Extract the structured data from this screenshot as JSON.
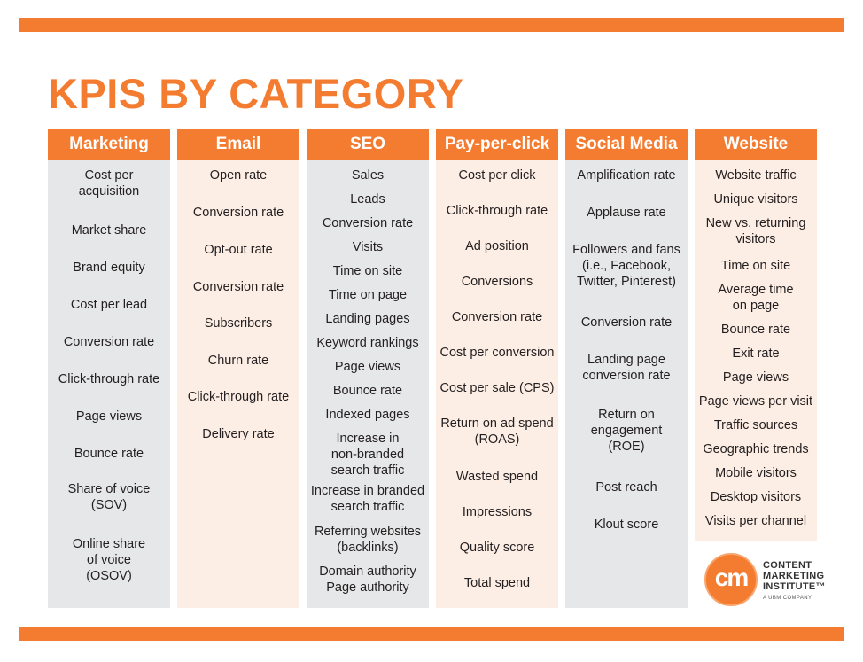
{
  "title": "KPIS BY CATEGORY",
  "colors": {
    "accent": "#f47c30",
    "panel_gray": "#e6e7e8",
    "panel_light": "#fdeee5"
  },
  "columns": [
    {
      "header": "Marketing",
      "items": [
        "Cost per\nacquisition",
        "Market share",
        "Brand equity",
        "Cost per lead",
        "Conversion rate",
        "Click-through rate",
        "Page views",
        "Bounce rate",
        "Share of voice\n(SOV)",
        "Online share\nof voice\n(OSOV)"
      ]
    },
    {
      "header": "Email",
      "items": [
        "Open rate",
        "Conversion rate",
        "Opt-out rate",
        "Conversion rate",
        "Subscribers",
        "Churn rate",
        "Click-through rate",
        "Delivery rate"
      ]
    },
    {
      "header": "SEO",
      "items": [
        "Sales",
        "Leads",
        "Conversion rate",
        "Visits",
        "Time on site",
        "Time on page",
        "Landing pages",
        "Keyword rankings",
        "Page views",
        "Bounce rate",
        "Indexed pages",
        "Increase in\nnon-branded\nsearch traffic",
        "Increase in branded\nsearch traffic",
        "Referring websites\n(backlinks)",
        "Domain authority\nPage authority"
      ]
    },
    {
      "header": "Pay-per-click",
      "items": [
        "Cost per click",
        "Click-through rate",
        "Ad position",
        "Conversions",
        "Conversion rate",
        "Cost per conversion",
        "Cost per sale (CPS)",
        "Return on ad spend\n(ROAS)",
        "Wasted spend",
        "Impressions",
        "Quality score",
        "Total spend"
      ]
    },
    {
      "header": "Social Media",
      "items": [
        "Amplification rate",
        "Applause rate",
        "Followers and fans\n(i.e., Facebook,\nTwitter, Pinterest)",
        "Conversion rate",
        "Landing page\nconversion rate",
        "Return on\nengagement\n(ROE)",
        "Post reach",
        "Klout score"
      ]
    },
    {
      "header": "Website",
      "items": [
        "Website traffic",
        "Unique visitors",
        "New vs. returning\nvisitors",
        "Time on site",
        "Average time\non page",
        "Bounce rate",
        "Exit rate",
        "Page views",
        "Page views per visit",
        "Traffic sources",
        "Geographic trends",
        "Mobile visitors",
        "Desktop visitors",
        "Visits per channel"
      ]
    }
  ],
  "logo": {
    "mark": "cm",
    "line1": "CONTENT",
    "line2": "MARKETING",
    "line3": "INSTITUTE™",
    "sub": "A UBM COMPANY"
  }
}
